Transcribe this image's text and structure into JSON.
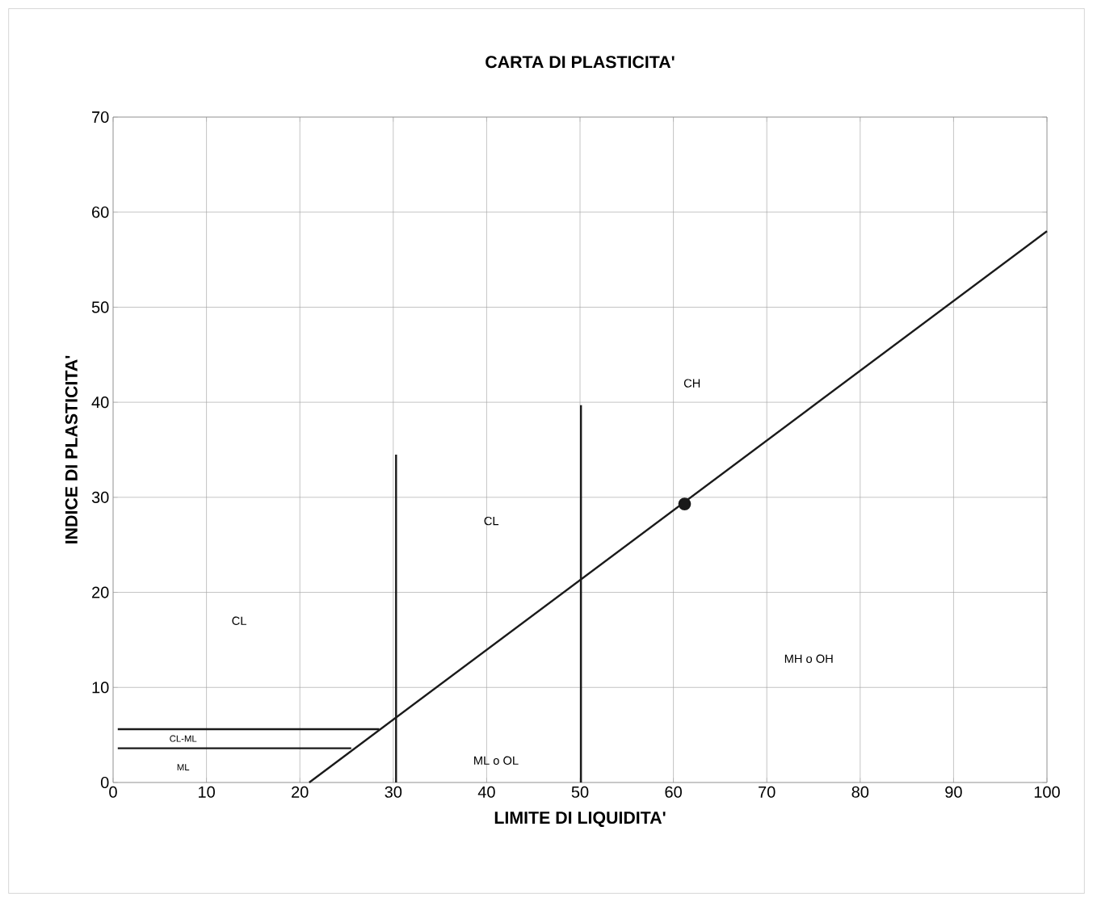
{
  "chart_data": {
    "type": "line",
    "title": "CARTA DI PLASTICITA'",
    "xlabel": "LIMITE DI LIQUIDITA'",
    "ylabel": "INDICE DI PLASTICITA'",
    "xlim": [
      0,
      100
    ],
    "ylim": [
      0,
      70
    ],
    "xticks": [
      0,
      10,
      20,
      30,
      40,
      50,
      60,
      70,
      80,
      90,
      100
    ],
    "yticks": [
      0,
      10,
      20,
      30,
      40,
      50,
      60,
      70
    ],
    "grid": true,
    "line_style": "solid",
    "series": [
      {
        "color": "#1a1a1a",
        "x": [
          21,
          100
        ],
        "values": [
          0,
          58
        ],
        "marker": "none"
      },
      {
        "color": "#1a1a1a",
        "x": [
          30.3,
          30.3
        ],
        "values": [
          0,
          34.5
        ],
        "marker": "none"
      },
      {
        "color": "#1a1a1a",
        "x": [
          50.1,
          50.1
        ],
        "values": [
          0,
          39.7
        ],
        "marker": "none"
      },
      {
        "color": "#1a1a1a",
        "x": [
          0.5,
          28.5
        ],
        "values": [
          5.6,
          5.6
        ],
        "marker": "none"
      },
      {
        "color": "#1a1a1a",
        "x": [
          0.5,
          25.5
        ],
        "values": [
          3.6,
          3.6
        ],
        "marker": "none"
      },
      {
        "type": "scatter",
        "color": "#1a1a1a",
        "x": [
          61.2
        ],
        "values": [
          29.3
        ],
        "marker": "circle"
      }
    ],
    "annotations": [
      "CL",
      "CL",
      "CH",
      "MH o OH",
      "ML o OL",
      "CL-ML",
      "ML"
    ]
  }
}
